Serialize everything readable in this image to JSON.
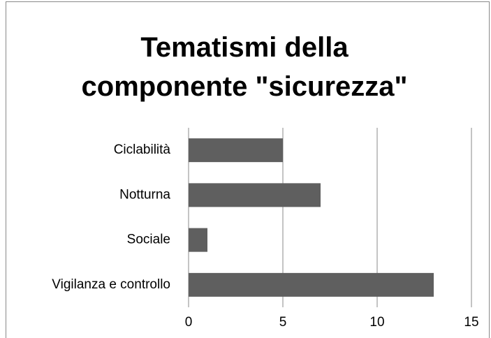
{
  "chart_data": {
    "type": "bar",
    "orientation": "horizontal",
    "title": "Tematismi della componente \"sicurezza\"",
    "categories": [
      "Ciclabilità",
      "Notturna",
      "Sociale",
      "Vigilanza e controllo"
    ],
    "values": [
      5,
      7,
      1,
      13
    ],
    "color": "#5f5f5f",
    "xlim": [
      0,
      15
    ],
    "xticks": [
      0,
      5,
      10,
      15
    ],
    "grid": true
  }
}
